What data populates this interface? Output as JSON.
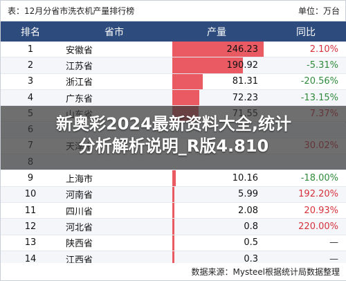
{
  "topbar": {
    "title": "表：12月分省市洗衣机产量排行榜",
    "unit": "单位：万台"
  },
  "table": {
    "headers": [
      "排名",
      "省市",
      "产量",
      "同比"
    ],
    "rows": [
      {
        "rank": "1",
        "province": "安徽省",
        "output": "246.23",
        "yoy": "2.10%",
        "direction": "up"
      },
      {
        "rank": "2",
        "province": "江苏省",
        "output": "190.92",
        "yoy": "-5.31%",
        "direction": "down"
      },
      {
        "rank": "3",
        "province": "浙江省",
        "output": "81.31",
        "yoy": "-20.56%",
        "direction": "down"
      },
      {
        "rank": "4",
        "province": "广东省",
        "output": "72.23",
        "yoy": "-13.15%",
        "direction": "down"
      },
      {
        "rank": "5",
        "province": "山东省",
        "output": "71.55",
        "yoy": "7.37%",
        "direction": "up"
      },
      {
        "rank": "6",
        "province": "",
        "output": "",
        "yoy": "",
        "direction": "none"
      },
      {
        "rank": "7",
        "province": "天津市",
        "output": "",
        "yoy": "30.02%",
        "direction": "up"
      },
      {
        "rank": "8",
        "province": "",
        "output": "",
        "yoy": "",
        "direction": "none"
      },
      {
        "rank": "9",
        "province": "上海市",
        "output": "10.16",
        "yoy": "-18.00%",
        "direction": "down"
      },
      {
        "rank": "10",
        "province": "河南省",
        "output": "5.99",
        "yoy": "192.20%",
        "direction": "up"
      },
      {
        "rank": "11",
        "province": "四川省",
        "output": "2.08",
        "yoy": "20.93%",
        "direction": "up"
      },
      {
        "rank": "12",
        "province": "河北省",
        "output": "0.8",
        "yoy": "220.00%",
        "direction": "up"
      },
      {
        "rank": "13",
        "province": "陕西省",
        "output": "0.5",
        "yoy": "—",
        "direction": "none"
      },
      {
        "rank": "14",
        "province": "江西省",
        "output": "0.3",
        "yoy": "—",
        "direction": "none"
      }
    ]
  },
  "footer": {
    "source": "数据来源：Mysteel根据统计局数据整理"
  },
  "overlay": {
    "line1": "新奥彩2024最新资料大全,统计",
    "line2": "分析解析说明_R版4.810"
  },
  "colors": {
    "header_bg": "#2d4b7c",
    "bar": "#ea5a63",
    "positive": "#d6313b",
    "negative": "#2f8a3a"
  }
}
